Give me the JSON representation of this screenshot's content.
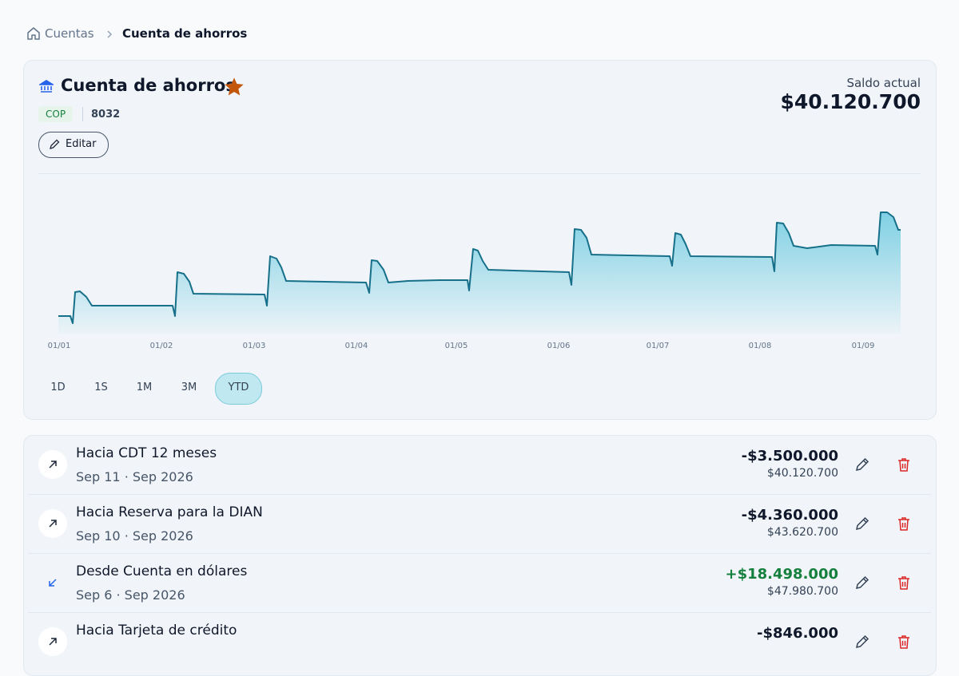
{
  "breadcrumb": {
    "parent": "Cuentas",
    "current": "Cuenta de ahorros"
  },
  "account": {
    "name": "Cuenta de ahorros",
    "currency": "COP",
    "number": "8032",
    "edit": "Editar",
    "balance_label": "Saldo actual",
    "balance": "$40.120.700"
  },
  "chart": {
    "x_labels": [
      "01/01",
      "01/02",
      "01/03",
      "01/04",
      "01/05",
      "01/06",
      "01/07",
      "01/08",
      "01/09"
    ]
  },
  "ranges": {
    "options": [
      "1D",
      "1S",
      "1M",
      "3M",
      "YTD"
    ],
    "active": "YTD"
  },
  "transactions": [
    {
      "title": "Hacia CDT 12 meses",
      "date": "Sep 11 · Sep 2026",
      "amount": "-$3.500.000",
      "balance": "$40.120.700",
      "direction": "out"
    },
    {
      "title": "Hacia Reserva para la DIAN",
      "date": "Sep 10 · Sep 2026",
      "amount": "-$4.360.000",
      "balance": "$43.620.700",
      "direction": "out"
    },
    {
      "title": "Desde Cuenta en dólares",
      "date": "Sep 6 · Sep 2026",
      "amount": "+$18.498.000",
      "balance": "$47.980.700",
      "direction": "in"
    },
    {
      "title": "Hacia Tarjeta de crédito",
      "amount": "-$846.000",
      "direction": "out"
    }
  ]
}
